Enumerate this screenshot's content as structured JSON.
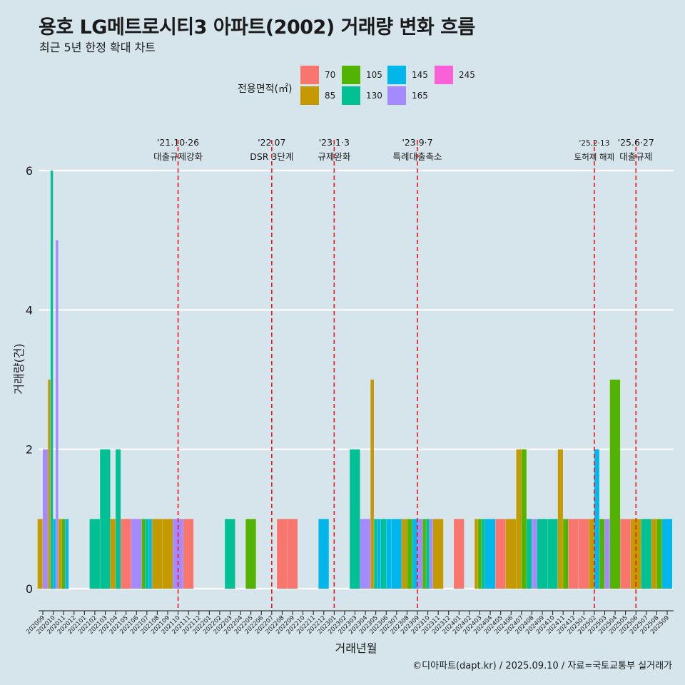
{
  "header": {
    "title": "용호 LG메트로시티3 아파트(2002) 거래량 변화 흐름",
    "subtitle": "최근 5년 한정 확대 차트"
  },
  "legend": {
    "title": "전용면적(㎡)",
    "items": [
      {
        "label": "70",
        "color": "#f8766d"
      },
      {
        "label": "85",
        "color": "#c49a00"
      },
      {
        "label": "105",
        "color": "#53b400"
      },
      {
        "label": "130",
        "color": "#00c094"
      },
      {
        "label": "145",
        "color": "#00b6eb"
      },
      {
        "label": "165",
        "color": "#a58aff"
      },
      {
        "label": "245",
        "color": "#fb61d7"
      }
    ]
  },
  "footer": {
    "credit": "©디아파트(dapt.kr) / 2025.09.10 / 자료=국토교통부 실거래가"
  },
  "chart_data": {
    "type": "bar",
    "xlabel": "거래년월",
    "ylabel": "거래량(건)",
    "ylim": [
      0,
      6.3
    ],
    "yticks": [
      0,
      2,
      4,
      6
    ],
    "categories": [
      "202009",
      "202010",
      "202011",
      "202012",
      "202101",
      "202102",
      "202103",
      "202104",
      "202105",
      "202106",
      "202107",
      "202108",
      "202109",
      "202110",
      "202111",
      "202112",
      "202201",
      "202202",
      "202203",
      "202204",
      "202205",
      "202206",
      "202207",
      "202208",
      "202209",
      "202210",
      "202211",
      "202212",
      "202301",
      "202302",
      "202303",
      "202304",
      "202305",
      "202306",
      "202307",
      "202308",
      "202309",
      "202310",
      "202311",
      "202312",
      "202401",
      "202402",
      "202403",
      "202404",
      "202405",
      "202406",
      "202407",
      "202408",
      "202409",
      "202410",
      "202411",
      "202412",
      "202501",
      "202502",
      "202503",
      "202504",
      "202505",
      "202506",
      "202507",
      "202508",
      "202509"
    ],
    "series": [
      {
        "name": "70",
        "values": [
          0,
          0,
          0,
          0,
          0,
          0,
          0,
          0,
          1,
          0,
          0,
          0,
          0,
          0,
          1,
          0,
          0,
          0,
          0,
          0,
          0,
          0,
          0,
          1,
          1,
          0,
          0,
          0,
          0,
          0,
          0,
          0,
          0,
          0,
          0,
          0,
          0,
          0,
          0,
          0,
          1,
          0,
          0,
          0,
          1,
          0,
          0,
          0,
          0,
          0,
          0,
          1,
          1,
          0,
          0,
          0,
          1,
          0,
          0,
          0,
          0
        ]
      },
      {
        "name": "85",
        "values": [
          1,
          3,
          1,
          0,
          0,
          0,
          0,
          1,
          0,
          0,
          0,
          1,
          1,
          0,
          0,
          0,
          0,
          0,
          0,
          0,
          0,
          0,
          0,
          0,
          0,
          0,
          0,
          0,
          0,
          0,
          0,
          0,
          3,
          0,
          0,
          1,
          0,
          0,
          1,
          0,
          0,
          0,
          1,
          0,
          0,
          1,
          2,
          0,
          0,
          0,
          2,
          0,
          0,
          1,
          0,
          0,
          0,
          1,
          0,
          1,
          0
        ]
      },
      {
        "name": "105",
        "values": [
          0,
          0,
          1,
          0,
          0,
          0,
          0,
          0,
          0,
          0,
          1,
          0,
          0,
          0,
          0,
          0,
          0,
          0,
          0,
          0,
          1,
          0,
          0,
          0,
          0,
          0,
          0,
          0,
          0,
          0,
          0,
          0,
          0,
          0,
          0,
          1,
          0,
          1,
          0,
          0,
          0,
          0,
          1,
          0,
          0,
          0,
          2,
          0,
          0,
          0,
          1,
          0,
          0,
          0,
          1,
          3,
          0,
          0,
          0,
          1,
          0
        ]
      },
      {
        "name": "130",
        "values": [
          0,
          6,
          0,
          0,
          0,
          1,
          2,
          2,
          0,
          0,
          1,
          0,
          0,
          0,
          0,
          0,
          0,
          0,
          1,
          0,
          0,
          0,
          0,
          0,
          0,
          0,
          0,
          0,
          0,
          0,
          2,
          0,
          1,
          1,
          0,
          0,
          0,
          1,
          0,
          0,
          0,
          0,
          1,
          0,
          0,
          0,
          0,
          1,
          1,
          1,
          0,
          0,
          0,
          0,
          0,
          0,
          0,
          0,
          1,
          0,
          0
        ]
      },
      {
        "name": "145",
        "values": [
          0,
          1,
          1,
          0,
          0,
          0,
          0,
          0,
          0,
          0,
          1,
          0,
          0,
          0,
          0,
          0,
          0,
          0,
          0,
          0,
          0,
          0,
          0,
          0,
          0,
          0,
          0,
          1,
          0,
          0,
          0,
          0,
          1,
          1,
          1,
          0,
          1,
          0,
          0,
          0,
          0,
          0,
          0,
          1,
          0,
          0,
          0,
          0,
          0,
          0,
          0,
          0,
          0,
          2,
          0,
          0,
          0,
          0,
          0,
          0,
          1
        ]
      },
      {
        "name": "165",
        "values": [
          2,
          5,
          0,
          0,
          0,
          0,
          0,
          0,
          0,
          1,
          0,
          0,
          0,
          1,
          0,
          0,
          0,
          0,
          0,
          0,
          0,
          0,
          0,
          0,
          0,
          0,
          0,
          0,
          0,
          0,
          0,
          1,
          0,
          0,
          0,
          0,
          1,
          1,
          0,
          0,
          0,
          0,
          0,
          0,
          0,
          0,
          0,
          1,
          0,
          0,
          0,
          0,
          0,
          0,
          1,
          0,
          0,
          0,
          0,
          0,
          0
        ]
      },
      {
        "name": "245",
        "values": [
          0,
          0,
          0,
          0,
          0,
          0,
          0,
          0,
          0,
          0,
          0,
          0,
          0,
          0,
          0,
          0,
          0,
          0,
          0,
          0,
          0,
          0,
          0,
          0,
          0,
          0,
          0,
          0,
          0,
          0,
          0,
          0,
          0,
          0,
          0,
          0,
          0,
          0,
          0,
          0,
          0,
          0,
          0,
          0,
          0,
          0,
          0,
          0,
          0,
          0,
          0,
          0,
          0,
          0,
          0,
          0,
          0,
          0,
          0,
          0,
          0
        ]
      }
    ],
    "annotations": [
      {
        "x": "202110",
        "date": "'21.10·26",
        "label": "대출규제강화"
      },
      {
        "x": "202207",
        "date": "'22.07",
        "label": "DSR 3단계"
      },
      {
        "x": "202301",
        "date": "'23.1·3",
        "label": "규제완화"
      },
      {
        "x": "202309",
        "date": "'23.9·7",
        "label": "특례대출축소"
      },
      {
        "x": "202502",
        "date": "'25.2·13",
        "label": "토허제 해제"
      },
      {
        "x": "202506",
        "date": "'25.6·27",
        "label": "대출규제"
      }
    ],
    "annotation_line_color": "#e41a1c",
    "grid": true
  }
}
